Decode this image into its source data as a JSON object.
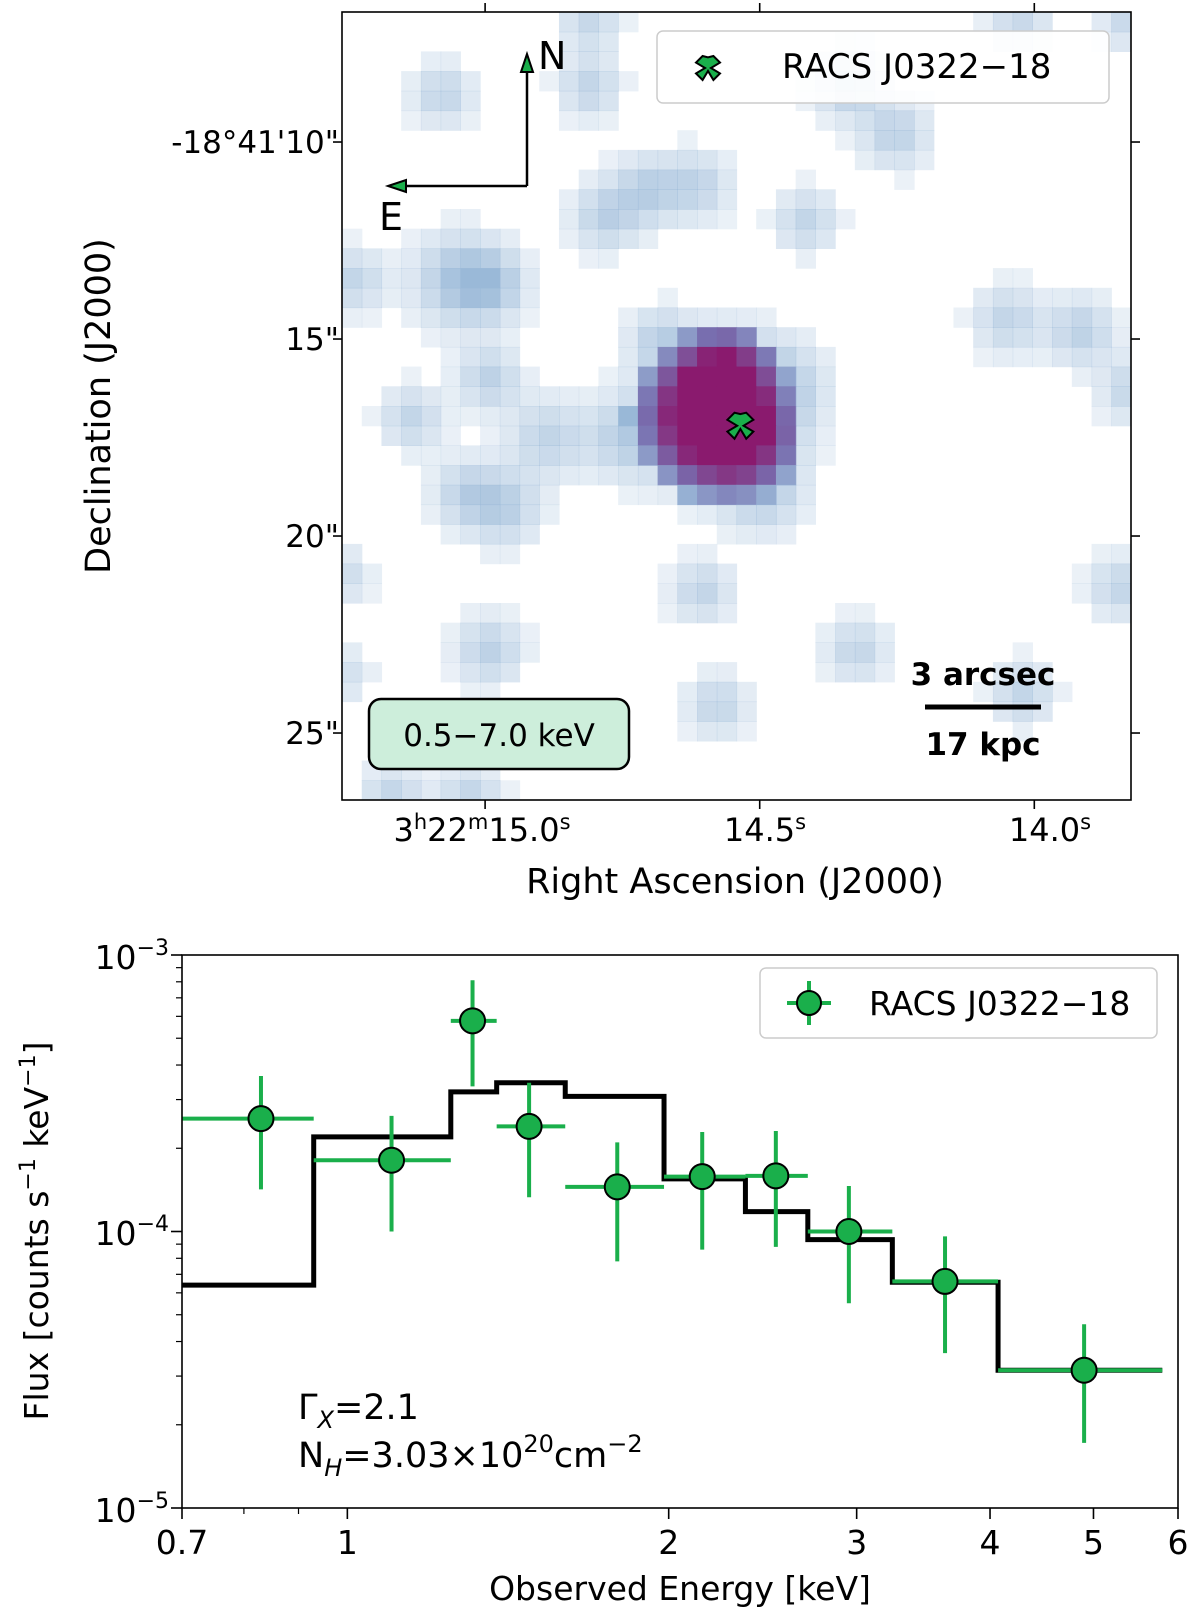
{
  "colors": {
    "source_marker": "#1aaf4b",
    "errorbar": "#1aaf4b",
    "model_line": "#000000",
    "band_box_fill": "#cdeedb",
    "blue_pixel": "#9ab9d8",
    "hot_pixel": "#8a1a6e"
  },
  "chart_data": [
    {
      "type": "heatmap",
      "title": "",
      "xlabel": "Right Ascension (J2000)",
      "ylabel": "Declination (J2000)",
      "xticks": [
        {
          "ra_offset_arcsec": -7.1,
          "prefix": "3",
          "h": "h",
          "mid": "22",
          "m": "m",
          "main": "15.0",
          "s": "s"
        },
        {
          "ra_offset_arcsec": 0.0,
          "prefix": "",
          "h": "",
          "mid": "",
          "m": "",
          "main": "14.5",
          "s": "s"
        },
        {
          "ra_offset_arcsec": 7.1,
          "prefix": "",
          "h": "",
          "mid": "",
          "m": "",
          "main": "14.0",
          "s": "s"
        }
      ],
      "yticks": [
        {
          "dec_arcsec": 10,
          "label": "-18°41'10\""
        },
        {
          "dec_arcsec": 15,
          "label": "15\""
        },
        {
          "dec_arcsec": 20,
          "label": "20\""
        },
        {
          "dec_arcsec": 25,
          "label": "25\""
        }
      ],
      "xlim_arcsec": [
        -10.8,
        9.6
      ],
      "ylim_arcsec": [
        6.7,
        26.7
      ],
      "legend": {
        "label": "RACS J0322−18",
        "position": "top-right"
      },
      "source": {
        "name": "RACS J0322−18",
        "ra_offset_arcsec": -0.5,
        "dec_arcsec": 17.2
      },
      "compass": {
        "north": "N",
        "east": "E"
      },
      "band_label": "0.5−7.0 keV",
      "scalebar": {
        "top": "3 arcsec",
        "bottom": "17 kpc",
        "length_arcsec": 3.0
      },
      "emission_blobs": [
        {
          "ra": -1.6,
          "dec": 17.0,
          "sigma": 1.0,
          "amp": 1.0,
          "hot": true
        },
        {
          "ra": -0.5,
          "dec": 17.5,
          "sigma": 0.9,
          "amp": 1.0,
          "hot": true
        },
        {
          "ra": -0.9,
          "dec": 16.0,
          "sigma": 0.8,
          "amp": 0.9,
          "hot": true
        },
        {
          "ra": 0.6,
          "dec": 16.2,
          "sigma": 0.8,
          "amp": 0.55,
          "hot": false
        },
        {
          "ra": 0.1,
          "dec": 18.9,
          "sigma": 0.7,
          "amp": 0.5,
          "hot": false
        },
        {
          "ra": -3.5,
          "dec": 17.5,
          "sigma": 0.7,
          "amp": 0.5,
          "hot": false
        },
        {
          "ra": -5.5,
          "dec": 17.5,
          "sigma": 0.7,
          "amp": 0.5,
          "hot": false
        },
        {
          "ra": -2.6,
          "dec": 15.0,
          "sigma": 0.55,
          "amp": 0.5,
          "hot": false
        },
        {
          "ra": -7.0,
          "dec": 16.0,
          "sigma": 0.55,
          "amp": 0.55,
          "hot": false
        },
        {
          "ra": -9.0,
          "dec": 17.0,
          "sigma": 0.55,
          "amp": 0.5,
          "hot": false
        },
        {
          "ra": -7.8,
          "dec": 13.5,
          "sigma": 0.8,
          "amp": 0.7,
          "hot": false
        },
        {
          "ra": -6.9,
          "dec": 13.6,
          "sigma": 0.6,
          "amp": 0.55,
          "hot": false
        },
        {
          "ra": -10.5,
          "dec": 13.5,
          "sigma": 0.55,
          "amp": 0.5,
          "hot": false
        },
        {
          "ra": -4.0,
          "dec": 11.9,
          "sigma": 0.6,
          "amp": 0.55,
          "hot": false
        },
        {
          "ra": -2.9,
          "dec": 11.2,
          "sigma": 0.6,
          "amp": 0.55,
          "hot": false
        },
        {
          "ra": -1.6,
          "dec": 11.1,
          "sigma": 0.6,
          "amp": 0.5,
          "hot": false
        },
        {
          "ra": 1.2,
          "dec": 12.0,
          "sigma": 0.55,
          "amp": 0.5,
          "hot": false
        },
        {
          "ra": 2.3,
          "dec": 8.5,
          "sigma": 0.6,
          "amp": 0.6,
          "hot": false
        },
        {
          "ra": 3.5,
          "dec": 9.8,
          "sigma": 0.6,
          "amp": 0.55,
          "hot": false
        },
        {
          "ra": -4.4,
          "dec": 8.6,
          "sigma": 0.55,
          "amp": 0.5,
          "hot": false
        },
        {
          "ra": -8.2,
          "dec": 8.8,
          "sigma": 0.55,
          "amp": 0.5,
          "hot": false
        },
        {
          "ra": -4.4,
          "dec": 6.9,
          "sigma": 0.55,
          "amp": 0.45,
          "hot": false
        },
        {
          "ra": 6.7,
          "dec": 6.9,
          "sigma": 0.55,
          "amp": 0.45,
          "hot": false
        },
        {
          "ra": 9.5,
          "dec": 6.9,
          "sigma": 0.5,
          "amp": 0.45,
          "hot": false
        },
        {
          "ra": 6.4,
          "dec": 14.5,
          "sigma": 0.6,
          "amp": 0.5,
          "hot": false
        },
        {
          "ra": 8.3,
          "dec": 14.8,
          "sigma": 0.6,
          "amp": 0.55,
          "hot": false
        },
        {
          "ra": 9.6,
          "dec": 16.3,
          "sigma": 0.55,
          "amp": 0.5,
          "hot": false
        },
        {
          "ra": -7.6,
          "dec": 18.9,
          "sigma": 0.6,
          "amp": 0.5,
          "hot": false
        },
        {
          "ra": -6.6,
          "dec": 19.3,
          "sigma": 0.65,
          "amp": 0.55,
          "hot": false
        },
        {
          "ra": -1.5,
          "dec": 21.4,
          "sigma": 0.55,
          "amp": 0.5,
          "hot": false
        },
        {
          "ra": -7.0,
          "dec": 22.9,
          "sigma": 0.6,
          "amp": 0.55,
          "hot": false
        },
        {
          "ra": -1.1,
          "dec": 24.3,
          "sigma": 0.55,
          "amp": 0.5,
          "hot": false
        },
        {
          "ra": 2.5,
          "dec": 22.9,
          "sigma": 0.55,
          "amp": 0.5,
          "hot": false
        },
        {
          "ra": 6.8,
          "dec": 24.0,
          "sigma": 0.55,
          "amp": 0.5,
          "hot": false
        },
        {
          "ra": 9.3,
          "dec": 21.3,
          "sigma": 0.55,
          "amp": 0.5,
          "hot": false
        },
        {
          "ra": -9.5,
          "dec": 26.6,
          "sigma": 0.55,
          "amp": 0.5,
          "hot": false
        },
        {
          "ra": -7.5,
          "dec": 26.6,
          "sigma": 0.55,
          "amp": 0.5,
          "hot": false
        },
        {
          "ra": -10.8,
          "dec": 21.0,
          "sigma": 0.5,
          "amp": 0.4,
          "hot": false
        },
        {
          "ra": -10.8,
          "dec": 23.5,
          "sigma": 0.5,
          "amp": 0.35,
          "hot": false
        }
      ]
    },
    {
      "type": "scatter",
      "title": "",
      "xlabel": "Observed Energy [keV]",
      "ylabel": {
        "pre": "Flux [counts s",
        "sup1": "−1",
        "mid": " keV",
        "sup2": "−1",
        "post": "]"
      },
      "xscale": "log",
      "yscale": "log",
      "xlim": [
        0.7,
        6.0
      ],
      "ylim": [
        1e-05,
        0.001
      ],
      "xticks": [
        {
          "value": 0.7,
          "label": "0.7"
        },
        {
          "value": 1,
          "label": "1"
        },
        {
          "value": 2,
          "label": "2"
        },
        {
          "value": 3,
          "label": "3"
        },
        {
          "value": 4,
          "label": "4"
        },
        {
          "value": 5,
          "label": "5"
        },
        {
          "value": 6,
          "label": "6"
        }
      ],
      "yticks": [
        {
          "value": 0.001,
          "base": "10",
          "exp": "−3"
        },
        {
          "value": 0.0001,
          "base": "10",
          "exp": "−4"
        },
        {
          "value": 1e-05,
          "base": "10",
          "exp": "−5"
        }
      ],
      "legend": {
        "label": "RACS J0322−18",
        "position": "top-right"
      },
      "annotations": {
        "gamma": {
          "sym": "Γ",
          "sub": "X",
          "rest": "=2.1"
        },
        "nh": {
          "sym": "N",
          "sub": "H",
          "mid": "=3.03×10",
          "exp": "20",
          "unit": "cm",
          "exp2": "−2"
        }
      },
      "series": [
        {
          "name": "RACS J0322−18",
          "points": [
            {
              "x": 0.83,
              "xlo": 0.7,
              "xhi": 0.93,
              "y": 0.000256,
              "ylo": 0.000142,
              "yhi": 0.000365
            },
            {
              "x": 1.1,
              "xlo": 0.93,
              "xhi": 1.25,
              "y": 0.000181,
              "ylo": 0.0001,
              "yhi": 0.000262
            },
            {
              "x": 1.31,
              "xlo": 1.25,
              "xhi": 1.38,
              "y": 0.000578,
              "ylo": 0.000335,
              "yhi": 0.00081
            },
            {
              "x": 1.48,
              "xlo": 1.38,
              "xhi": 1.6,
              "y": 0.00024,
              "ylo": 0.000133,
              "yhi": 0.000345
            },
            {
              "x": 1.79,
              "xlo": 1.6,
              "xhi": 1.98,
              "y": 0.000145,
              "ylo": 7.8e-05,
              "yhi": 0.00021
            },
            {
              "x": 2.15,
              "xlo": 1.98,
              "xhi": 2.36,
              "y": 0.000158,
              "ylo": 8.6e-05,
              "yhi": 0.000229
            },
            {
              "x": 2.52,
              "xlo": 2.36,
              "xhi": 2.7,
              "y": 0.000159,
              "ylo": 8.8e-05,
              "yhi": 0.000231
            },
            {
              "x": 2.95,
              "xlo": 2.7,
              "xhi": 3.24,
              "y": 0.0001,
              "ylo": 5.5e-05,
              "yhi": 0.000146
            },
            {
              "x": 3.63,
              "xlo": 3.24,
              "xhi": 4.07,
              "y": 6.6e-05,
              "ylo": 3.63e-05,
              "yhi": 9.6e-05
            },
            {
              "x": 4.9,
              "xlo": 4.07,
              "xhi": 5.8,
              "y": 3.15e-05,
              "ylo": 1.72e-05,
              "yhi": 4.62e-05
            }
          ]
        },
        {
          "name": "model",
          "type": "step",
          "edges": [
            0.7,
            0.93,
            1.25,
            1.38,
            1.6,
            1.98,
            2.36,
            2.7,
            3.24,
            4.07,
            5.8
          ],
          "values": [
            6.4e-05,
            0.00022,
            0.00032,
            0.000345,
            0.000308,
            0.000155,
            0.000118,
            9.35e-05,
            6.55e-05,
            3.15e-05
          ]
        }
      ]
    }
  ]
}
